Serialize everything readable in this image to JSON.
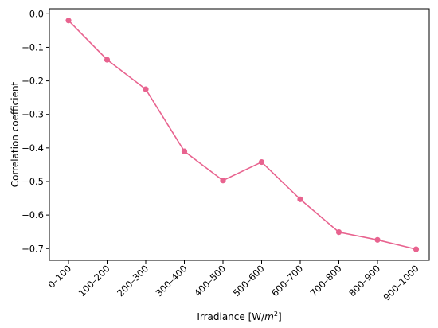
{
  "chart_data": {
    "type": "line",
    "title": "",
    "xlabel": "Irradiance [W/m²]",
    "xlabel_parts": {
      "prefix": "Irradiance [W/",
      "italic": "m",
      "sup": "2",
      "suffix": "]"
    },
    "ylabel": "Correlation coefficient",
    "categories": [
      "0–100",
      "100–200",
      "200–300",
      "300–400",
      "400–500",
      "500–600",
      "600–700",
      "700–800",
      "800–900",
      "900–1000"
    ],
    "series": [
      {
        "values": [
          -0.02,
          -0.137,
          -0.225,
          -0.41,
          -0.497,
          -0.442,
          -0.553,
          -0.651,
          -0.674,
          -0.702
        ],
        "color": "#e8638f"
      }
    ],
    "ylim": [
      -0.735,
      0.015
    ],
    "yticks": [
      0.0,
      -0.1,
      -0.2,
      -0.3,
      -0.4,
      -0.5,
      -0.6,
      -0.7
    ],
    "ytick_labels": [
      "0.0",
      "−0.1",
      "−0.2",
      "−0.3",
      "−0.4",
      "−0.5",
      "−0.6",
      "−0.7"
    ],
    "grid": false,
    "legend": "none"
  }
}
